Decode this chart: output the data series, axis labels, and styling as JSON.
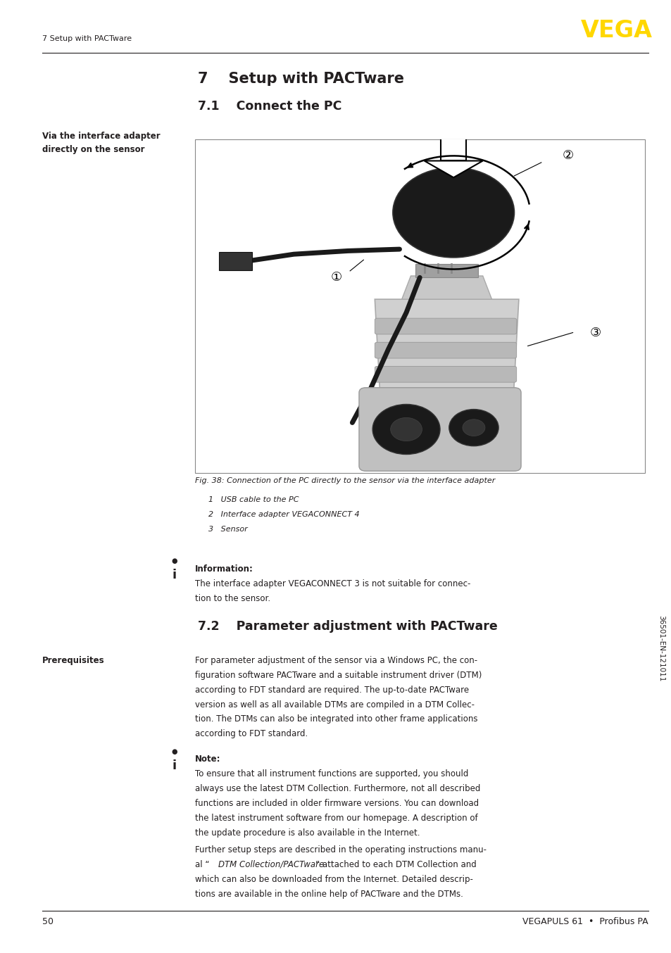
{
  "page_width": 9.54,
  "page_height": 13.54,
  "bg_color": "#ffffff",
  "header_text": "7 Setup with PACTware",
  "vega_logo_color": "#FFD700",
  "vega_logo_text": "VEGA",
  "footer_page_num": "50",
  "footer_right": "VEGAPULS 61  •  Profibus PA",
  "section7_title": "7    Setup with PACTware",
  "section71_title": "7.1    Connect the PC",
  "section72_title": "7.2    Parameter adjustment with PACTware",
  "left_label_1a": "Via the interface adapter",
  "left_label_1b": "directly on the sensor",
  "fig_caption": "Fig. 38: Connection of the PC directly to the sensor via the interface adapter",
  "fig_item1": "1   USB cable to the PC",
  "fig_item2": "2   Interface adapter VEGACONNECT 4",
  "fig_item3": "3   Sensor",
  "info_bold": "Information:",
  "info_text1": "The interface adapter VEGACONNECT 3 is not suitable for connec-",
  "info_text2": "tion to the sensor.",
  "prereq_label": "Prerequisites",
  "prereq_lines": [
    "For parameter adjustment of the sensor via a Windows PC, the con-",
    "figuration software PACTware and a suitable instrument driver (DTM)",
    "according to FDT standard are required. The up-to-date PACTware",
    "version as well as all available DTMs are compiled in a DTM Collec-",
    "tion. The DTMs can also be integrated into other frame applications",
    "according to FDT standard."
  ],
  "note_bold": "Note:",
  "note_lines": [
    "To ensure that all instrument functions are supported, you should",
    "always use the latest DTM Collection. Furthermore, not all described",
    "functions are included in older firmware versions. You can download",
    "the latest instrument software from our homepage. A description of",
    "the update procedure is also available in the Internet."
  ],
  "further_lines": [
    "Further setup steps are described in the operating instructions manu-",
    "al “DTM Collection/PACTware” attached to each DTM Collection and",
    "which can also be downloaded from the Internet. Detailed descrip-",
    "tions are available in the online help of PACTware and the DTMs."
  ],
  "further_italic_part": "DTM Collection/PACTware",
  "sidebar_text": "36501-EN-121011",
  "text_color": "#231f20",
  "lm": 0.063,
  "cl": 0.285,
  "rm": 0.965
}
